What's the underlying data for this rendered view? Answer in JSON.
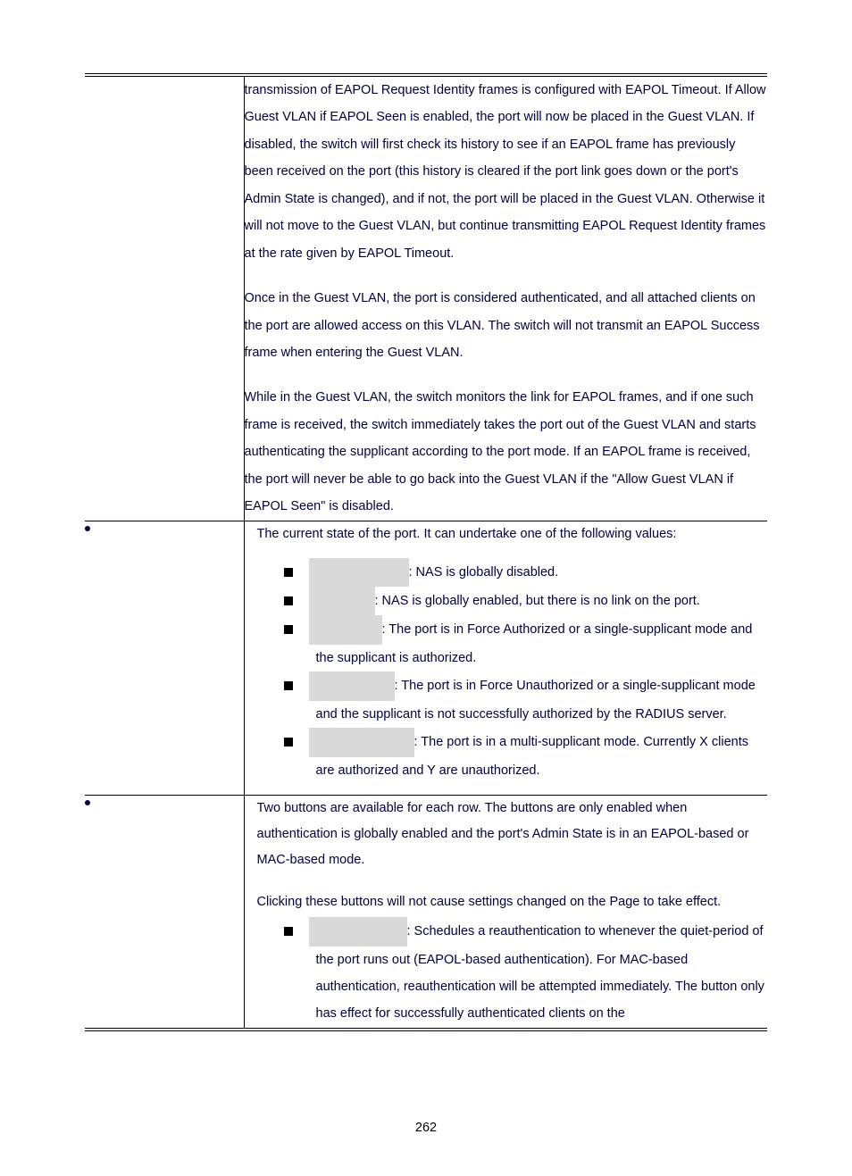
{
  "page_number": "262",
  "colors": {
    "body_text": "#000040",
    "label_bg": "#d9d9d9",
    "rule": "#000000",
    "bullet": "#000040"
  },
  "rows": {
    "guest_vlan": {
      "p1": "transmission of EAPOL Request Identity frames is configured with EAPOL Timeout. If Allow Guest VLAN if EAPOL Seen is enabled, the port will now be placed in the Guest VLAN. If disabled, the switch will first check its history to see if an EAPOL frame has previously been received on the port (this history is cleared if the port link goes down or the port's Admin State is changed), and if not, the port will be placed in the Guest VLAN. Otherwise it will not move to the Guest VLAN, but continue transmitting EAPOL Request Identity frames at the rate given by EAPOL Timeout.",
      "p2": "Once in the Guest VLAN, the port is considered authenticated, and all attached clients on the port are allowed access on this VLAN. The switch will not transmit an EAPOL Success frame when entering the Guest VLAN.",
      "p3": "While in the Guest VLAN, the switch monitors the link for EAPOL frames, and if one such frame is received, the switch immediately takes the port out of the Guest VLAN and starts authenticating the supplicant according to the port mode. If an EAPOL frame is received, the port will never be able to go back into the Guest VLAN if the \"Allow Guest VLAN if EAPOL Seen\" is disabled."
    },
    "port_state": {
      "intro": "The current state of the port. It can undertake one of the following values:",
      "items": [
        {
          "label_width": 108,
          "text": ": NAS is globally disabled."
        },
        {
          "label_width": 70,
          "text": ": NAS is globally enabled, but there is no link on the port."
        },
        {
          "label_width": 78,
          "text": ": The port is in Force Authorized or a single-supplicant mode and the supplicant is authorized."
        },
        {
          "label_width": 92,
          "text": ": The port is in Force Unauthorized or a single-supplicant mode and the supplicant is not successfully authorized by the RADIUS server."
        },
        {
          "label_width": 114,
          "text": ": The port is in a multi-supplicant mode. Currently X clients are authorized and Y are unauthorized."
        }
      ]
    },
    "restart": {
      "p1": "Two buttons are available for each row. The buttons are only enabled when authentication is globally enabled and the port's Admin State is in an EAPOL-based or MAC-based mode.",
      "p2": "Clicking these buttons will not cause settings changed on the Page to take effect.",
      "item1": {
        "label_width": 106,
        "text": ": Schedules a reauthentication to whenever the quiet-period of the port runs out (EAPOL-based authentication). For MAC-based authentication, reauthentication will be attempted immediately. The button only has effect for successfully authenticated clients on the"
      }
    }
  }
}
